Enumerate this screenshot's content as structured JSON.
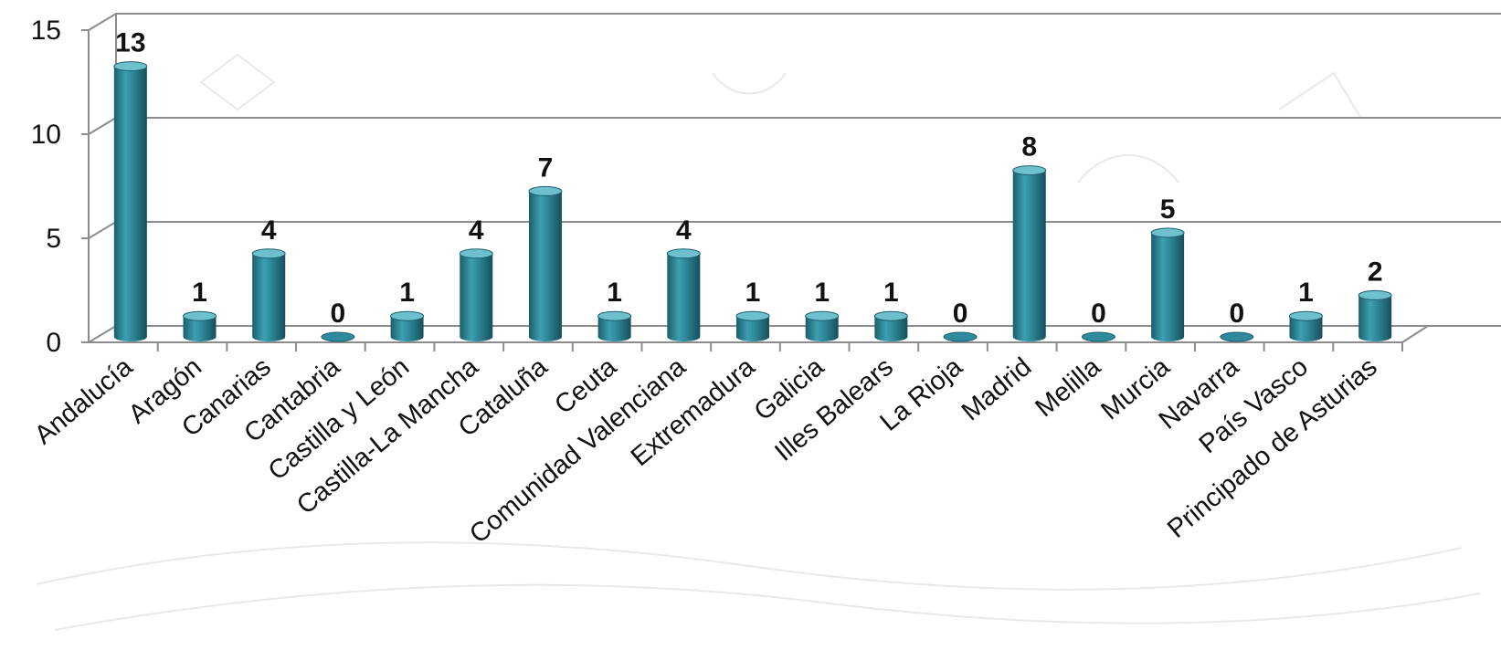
{
  "chart_data": {
    "type": "bar",
    "title": "",
    "xlabel": "",
    "ylabel": "",
    "categories": [
      "Andalucía",
      "Aragón",
      "Canarias",
      "Cantabria",
      "Castilla y León",
      "Castilla-La Mancha",
      "Cataluña",
      "Ceuta",
      "Comunidad Valenciana",
      "Extremadura",
      "Galicia",
      "Illes Balears",
      "La Rioja",
      "Madrid",
      "Melilla",
      "Murcia",
      "Navarra",
      "País Vasco",
      "Principado de Asturias"
    ],
    "values": [
      13,
      1,
      4,
      0,
      1,
      4,
      7,
      1,
      4,
      1,
      1,
      1,
      0,
      8,
      0,
      5,
      0,
      1,
      2
    ],
    "ylim": [
      0,
      15
    ],
    "yticks": [
      0,
      5,
      10,
      15
    ],
    "grid": true,
    "legend": "none",
    "data_labels": true,
    "style": "3d-cylinder"
  },
  "colors": {
    "bar": "#2e8a9c",
    "bar_dark": "#1b5e6c",
    "bar_light": "#6fc0cf",
    "gridline": "#8c8c8c",
    "axis": "#8c8c8c"
  }
}
